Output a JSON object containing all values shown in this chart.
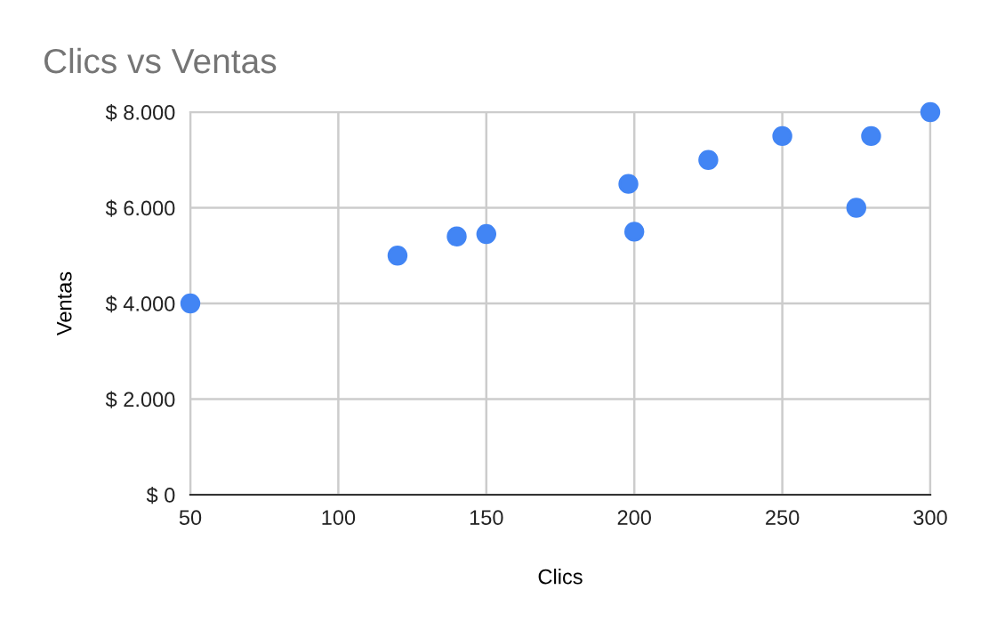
{
  "chart_data": {
    "type": "scatter",
    "title": "Clics vs Ventas",
    "xlabel": "Clics",
    "ylabel": "Ventas",
    "x": [
      50,
      120,
      140,
      150,
      198,
      200,
      225,
      250,
      275,
      280,
      300
    ],
    "series": [
      {
        "color": "#4285f4",
        "values": [
          4000,
          5000,
          5400,
          5450,
          6500,
          5500,
          7000,
          7500,
          6000,
          7500,
          8000
        ]
      }
    ],
    "xlim": [
      50,
      300
    ],
    "xticks": [
      50,
      100,
      150,
      200,
      250,
      300
    ],
    "ylim": [
      0,
      8000
    ],
    "yticks": [
      {
        "value": 0,
        "label": "$ 0"
      },
      {
        "value": 2000,
        "label": "$ 2.000"
      },
      {
        "value": 4000,
        "label": "$ 4.000"
      },
      {
        "value": 6000,
        "label": "$ 6.000"
      },
      {
        "value": 8000,
        "label": "$ 8.000"
      }
    ],
    "grid": true,
    "marker": "circle"
  }
}
